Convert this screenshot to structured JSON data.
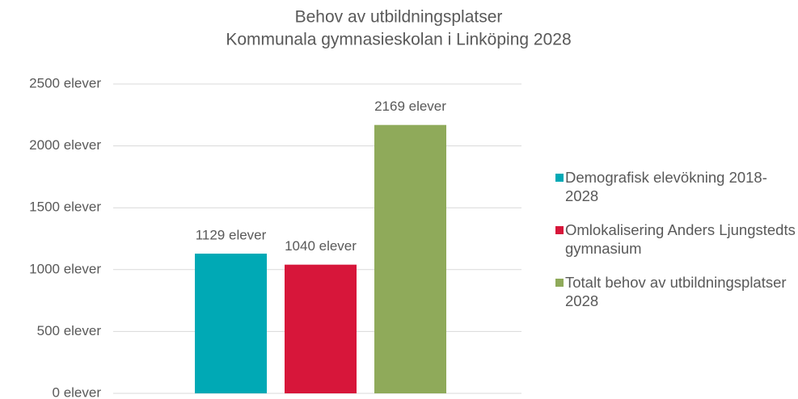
{
  "chart_data": {
    "type": "bar",
    "title": "Behov av utbildningsplatser",
    "subtitle": "Kommunala gymnasieskolan i Linköping 2028",
    "categories": [
      null
    ],
    "series": [
      {
        "name": "Demografisk elevökning 2018-2028",
        "color": "#00a9b5",
        "values": [
          1129
        ],
        "value_labels": [
          "1129 elever"
        ]
      },
      {
        "name": "Omlokalisering Anders Ljungstedts gymnasium",
        "color": "#d7163a",
        "values": [
          1040
        ],
        "value_labels": [
          "1040 elever"
        ]
      },
      {
        "name": "Totalt behov av utbildningsplatser 2028",
        "color": "#8faa5a",
        "values": [
          2169
        ],
        "value_labels": [
          "2169 elever"
        ]
      }
    ],
    "ylim": [
      0,
      2500
    ],
    "yticks": [
      {
        "value": 0,
        "label": "0 elever"
      },
      {
        "value": 500,
        "label": "500 elever"
      },
      {
        "value": 1000,
        "label": "1000 elever"
      },
      {
        "value": 1500,
        "label": "1500 elever"
      },
      {
        "value": 2000,
        "label": "2000 elever"
      },
      {
        "value": 2500,
        "label": "2500 elever"
      }
    ],
    "grid": true,
    "legend": "right"
  }
}
